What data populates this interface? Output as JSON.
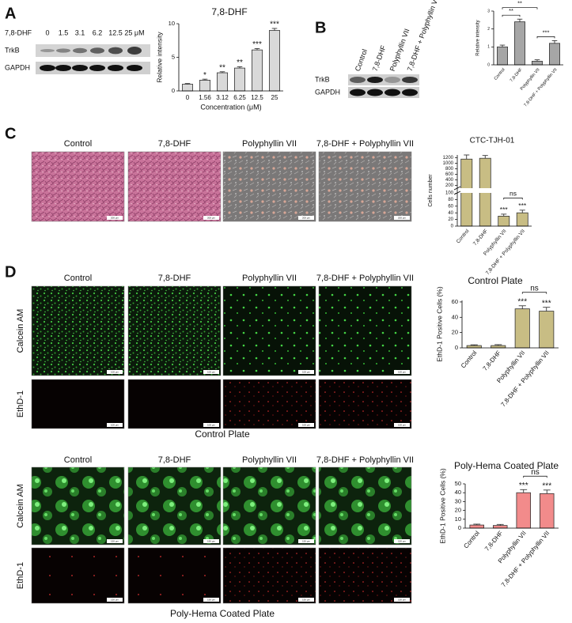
{
  "panel_a": {
    "label": "A",
    "blot_header": "7,8-DHF",
    "lanes": [
      "0",
      "1.5",
      "3.1",
      "6.2",
      "12.5",
      "25 μM"
    ],
    "rows": [
      "TrkB",
      "GAPDH"
    ]
  },
  "panel_b": {
    "label": "B",
    "lanes": [
      "Control",
      "7,8-DHF",
      "Polyphyllin VII",
      "7,8-DHF + Polyphyllin VII"
    ],
    "rows": [
      "TrkB",
      "GAPDH"
    ]
  },
  "panel_c": {
    "label": "C",
    "columns": [
      "Control",
      "7,8-DHF",
      "Polyphyllin VII",
      "7,8-DHF + Polyphyllin VII"
    ],
    "scale_bar": "200 μm"
  },
  "panel_d": {
    "label": "D",
    "plates": [
      {
        "columns": [
          "Control",
          "7,8-DHF",
          "Polyphyllin VII",
          "7,8-DHF + Polyphyllin VII"
        ],
        "rows": [
          "Calcein AM",
          "EthD-1"
        ],
        "caption": "Control Plate",
        "scale_bar": "100 μm"
      },
      {
        "columns": [
          "Control",
          "7,8-DHF",
          "Polyphyllin VII",
          "7,8-DHF + Polyphyllin VII"
        ],
        "rows": [
          "Calcein AM",
          "EthD-1"
        ],
        "caption": "Poly-Hema Coated Plate",
        "scale_bar": "150 μm"
      }
    ]
  },
  "chart_data": [
    {
      "type": "bar",
      "title": "7,8-DHF",
      "y_label": "Relative intensity",
      "x_label": "Concentration (μM)",
      "categories": [
        "0",
        "1.56",
        "3.12",
        "6.25",
        "12.5",
        "25"
      ],
      "values": [
        1.0,
        1.6,
        2.7,
        3.4,
        6.1,
        9.0
      ],
      "errors": [
        0.1,
        0.15,
        0.15,
        0.2,
        0.2,
        0.3
      ],
      "annotations": [
        null,
        "*",
        "**",
        "**",
        "***",
        "***"
      ],
      "color": "#d9d9d9",
      "ylim": [
        0,
        10
      ],
      "yticks": [
        0,
        5,
        10
      ]
    },
    {
      "type": "bar",
      "y_label": "Relative intensity",
      "categories": [
        "Control",
        "7,8-DHF",
        "Polyphyllin VII",
        "7,8-DHF + Polyphyllin VII"
      ],
      "values": [
        1.0,
        2.4,
        0.2,
        1.2
      ],
      "errors": [
        0.1,
        0.15,
        0.08,
        0.15
      ],
      "brackets": [
        {
          "between": [
            "Control",
            "7,8-DHF"
          ],
          "label": "**"
        },
        {
          "between": [
            "Control",
            "Polyphyllin VII"
          ],
          "label": "**"
        },
        {
          "between": [
            "Polyphyllin VII",
            "7,8-DHF + Polyphyllin VII"
          ],
          "label": "***"
        }
      ],
      "color": "#a6a6a6",
      "ylim": [
        0,
        3
      ],
      "yticks": [
        0,
        1,
        2,
        3
      ]
    },
    {
      "type": "bar",
      "title": "CTC-TJH-01",
      "y_label": "Cells number",
      "categories": [
        "Control",
        "7,8-DHF",
        "Polyphyllin VII",
        "7,8-DHF + Polyphyllin VII"
      ],
      "values": [
        1150,
        1180,
        30,
        40
      ],
      "errors": [
        150,
        100,
        6,
        8
      ],
      "annotations": [
        null,
        null,
        "***",
        "***"
      ],
      "brackets": [
        {
          "between": [
            "Polyphyllin VII",
            "7,8-DHF + Polyphyllin VII"
          ],
          "label": "ns"
        }
      ],
      "color": "#c8bd84",
      "ylim": [
        0,
        1300
      ],
      "ybreak": 100,
      "yticks": [
        0,
        20,
        40,
        60,
        80,
        100,
        200,
        400,
        600,
        800,
        1000,
        1200
      ]
    },
    {
      "type": "bar",
      "title": "Control Plate",
      "y_label": "EthD-1 Positive Cells (%)",
      "categories": [
        "Control",
        "7,8-DHF",
        "Polyphyllin VII",
        "7,8-DHF + Polyphyllin VII"
      ],
      "values": [
        3,
        3,
        51,
        48
      ],
      "errors": [
        1,
        1.2,
        4,
        5
      ],
      "annotations": [
        null,
        null,
        "***",
        "***"
      ],
      "brackets": [
        {
          "between": [
            "Polyphyllin VII",
            "7,8-DHF + Polyphyllin VII"
          ],
          "label": "ns"
        }
      ],
      "color": "#c8bd84",
      "ylim": [
        0,
        62
      ],
      "yticks": [
        0,
        20,
        40,
        60
      ]
    },
    {
      "type": "bar",
      "title": "Poly-Hema Coated Plate",
      "y_label": "EthD-1 Positive Cells (%)",
      "categories": [
        "Control",
        "7,8-DHF",
        "Polyphyllin VII",
        "7,8-DHF + Polyphyllin VII"
      ],
      "values": [
        3.5,
        3,
        40,
        39
      ],
      "errors": [
        1,
        1.2,
        3.5,
        4
      ],
      "annotations": [
        null,
        null,
        "***",
        "***"
      ],
      "brackets": [
        {
          "between": [
            "Polyphyllin VII",
            "7,8-DHF + Polyphyllin VII"
          ],
          "label": "ns"
        }
      ],
      "color": "#f28b8b",
      "ylim": [
        0,
        50
      ],
      "yticks": [
        0,
        10,
        20,
        30,
        40,
        50
      ]
    }
  ]
}
